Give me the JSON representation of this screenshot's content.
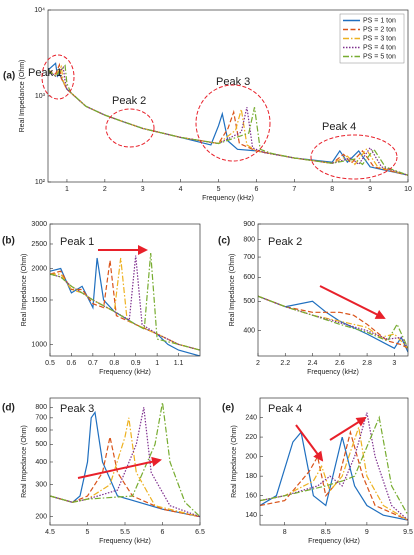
{
  "chart_data": [
    {
      "type": "line",
      "panel": "(a)",
      "xlabel": "Frequency (kHz)",
      "ylabel": "Real Impedance (Ohm)",
      "log_y": true,
      "legend": "upper right",
      "xlim": [
        0.5,
        10
      ],
      "xticks": [
        1,
        2,
        3,
        4,
        5,
        6,
        7,
        8,
        9,
        10
      ],
      "ylim": [
        100,
        10000
      ],
      "yticks": [
        {
          "value": 100,
          "label": "10²"
        },
        {
          "value": 1000,
          "label": "10³"
        },
        {
          "value": 10000,
          "label": "10⁴"
        }
      ],
      "annotations": [
        "Peak 1",
        "Peak 2",
        "Peak 3",
        "Peak 4"
      ],
      "series": [
        {
          "name": "PS = 1 ton",
          "color": "#1f6fbf",
          "style": "solid",
          "x": [
            0.5,
            0.7,
            0.75,
            0.8,
            1,
            1.5,
            2,
            2.5,
            3,
            4,
            4.8,
            5.0,
            5.1,
            5.25,
            5.5,
            6,
            7,
            8,
            8.2,
            8.4,
            8.7,
            9,
            10
          ],
          "values": [
            2000,
            2400,
            1700,
            1800,
            1200,
            760,
            600,
            500,
            420,
            330,
            270,
            450,
            620,
            300,
            240,
            230,
            190,
            170,
            230,
            170,
            230,
            150,
            120
          ]
        },
        {
          "name": "PS = 2 ton",
          "color": "#d95319",
          "style": "dashed",
          "x": [
            0.5,
            0.7,
            0.8,
            0.85,
            1,
            1.5,
            2,
            2.5,
            3,
            4,
            5,
            5.25,
            5.4,
            5.55,
            6,
            7,
            8,
            8.3,
            8.5,
            8.8,
            9.1,
            10
          ],
          "values": [
            2000,
            1800,
            2300,
            1600,
            1200,
            760,
            600,
            500,
            420,
            330,
            280,
            420,
            650,
            280,
            230,
            190,
            165,
            210,
            165,
            230,
            150,
            120
          ]
        },
        {
          "name": "PS = 3 ton",
          "color": "#edb120",
          "style": "dashdot",
          "x": [
            0.5,
            0.7,
            0.85,
            0.9,
            1,
            1.5,
            2,
            2.5,
            3,
            4,
            5,
            5.45,
            5.6,
            5.75,
            6,
            7,
            8,
            8.4,
            8.6,
            8.9,
            9.2,
            10
          ],
          "values": [
            2000,
            1700,
            2200,
            1500,
            1200,
            760,
            600,
            500,
            420,
            330,
            280,
            400,
            700,
            270,
            230,
            190,
            165,
            200,
            160,
            240,
            150,
            120
          ]
        },
        {
          "name": "PS = 4 ton",
          "color": "#7e2f8e",
          "style": "dotted",
          "x": [
            0.5,
            0.7,
            0.9,
            0.95,
            1,
            1.5,
            2,
            2.5,
            3,
            4,
            5,
            5.6,
            5.75,
            5.9,
            6.2,
            7,
            8,
            8.5,
            8.7,
            9.0,
            9.3,
            10
          ],
          "values": [
            2000,
            1700,
            2150,
            1500,
            1200,
            760,
            600,
            500,
            420,
            330,
            280,
            380,
            740,
            250,
            220,
            190,
            165,
            190,
            160,
            250,
            150,
            120
          ]
        },
        {
          "name": "PS = 5 ton",
          "color": "#77ac30",
          "style": "dashdot",
          "x": [
            0.5,
            0.7,
            0.95,
            1.0,
            1.1,
            1.5,
            2,
            2.5,
            3,
            4,
            5,
            5.8,
            5.95,
            6.1,
            6.4,
            7,
            8,
            8.6,
            8.8,
            9.1,
            9.4,
            10
          ],
          "values": [
            2000,
            1700,
            2250,
            1400,
            1100,
            760,
            600,
            500,
            420,
            330,
            280,
            370,
            740,
            240,
            215,
            190,
            165,
            185,
            160,
            240,
            150,
            120
          ]
        }
      ]
    },
    {
      "type": "line",
      "panel": "(b)",
      "xlabel": "Frequency (kHz)",
      "ylabel": "Real Impedance (Ohm)",
      "log_y": true,
      "xlim": [
        0.5,
        1.2
      ],
      "xticks": [
        0.5,
        0.6,
        0.7,
        0.8,
        0.9,
        1,
        1.1
      ],
      "ylim": [
        900,
        3000
      ],
      "yticks": [
        1000,
        1500,
        2000,
        2500,
        3000
      ],
      "annotations": [
        "Peak 1"
      ],
      "series": [
        {
          "color": "#1f6fbf",
          "style": "solid",
          "x": [
            0.5,
            0.55,
            0.6,
            0.65,
            0.7,
            0.72,
            0.75,
            0.8,
            0.9,
            1.0,
            1.05,
            1.1,
            1.2
          ],
          "values": [
            1950,
            2000,
            1600,
            1700,
            1400,
            2200,
            1500,
            1350,
            1200,
            1100,
            1000,
            950,
            900
          ]
        },
        {
          "color": "#d95319",
          "style": "dashed",
          "x": [
            0.5,
            0.55,
            0.6,
            0.65,
            0.7,
            0.75,
            0.78,
            0.81,
            0.9,
            1.0,
            1.1,
            1.2
          ],
          "values": [
            1900,
            1950,
            1650,
            1650,
            1450,
            1400,
            2150,
            1300,
            1200,
            1100,
            1000,
            950
          ]
        },
        {
          "color": "#edb120",
          "style": "dashdot",
          "x": [
            0.5,
            0.55,
            0.6,
            0.65,
            0.7,
            0.8,
            0.83,
            0.86,
            0.9,
            1.0,
            1.1,
            1.2
          ],
          "values": [
            1900,
            1900,
            1650,
            1600,
            1500,
            1350,
            2200,
            1250,
            1200,
            1100,
            1000,
            950
          ]
        },
        {
          "color": "#7e2f8e",
          "style": "dotted",
          "x": [
            0.5,
            0.55,
            0.6,
            0.65,
            0.7,
            0.8,
            0.87,
            0.9,
            0.93,
            1.0,
            1.1,
            1.2
          ],
          "values": [
            1900,
            1850,
            1700,
            1600,
            1500,
            1350,
            1250,
            2250,
            1200,
            1100,
            1000,
            950
          ]
        },
        {
          "color": "#77ac30",
          "style": "dashdot",
          "x": [
            0.5,
            0.55,
            0.6,
            0.65,
            0.7,
            0.8,
            0.9,
            0.94,
            0.97,
            1.0,
            1.1,
            1.2
          ],
          "values": [
            1900,
            1850,
            1700,
            1600,
            1500,
            1350,
            1200,
            1150,
            2300,
            1050,
            1000,
            950
          ]
        }
      ]
    },
    {
      "type": "line",
      "panel": "(c)",
      "xlabel": "Frequency (kHz)",
      "ylabel": "Real Impedance (Ohm)",
      "log_y": true,
      "xlim": [
        2,
        3.1
      ],
      "xticks": [
        2,
        2.2,
        2.4,
        2.6,
        2.8,
        3
      ],
      "ylim": [
        330,
        900
      ],
      "yticks": [
        400,
        500,
        600,
        700,
        800,
        900
      ],
      "annotations": [
        "Peak 2"
      ],
      "series": [
        {
          "color": "#1f6fbf",
          "style": "solid",
          "x": [
            2,
            2.2,
            2.4,
            2.5,
            2.6,
            2.8,
            3,
            3.05,
            3.1
          ],
          "values": [
            520,
            480,
            500,
            460,
            430,
            390,
            350,
            380,
            340
          ]
        },
        {
          "color": "#d95319",
          "style": "dashed",
          "x": [
            2,
            2.2,
            2.4,
            2.6,
            2.7,
            2.8,
            2.95,
            3.05,
            3.1
          ],
          "values": [
            520,
            480,
            460,
            460,
            450,
            420,
            370,
            360,
            350
          ]
        },
        {
          "color": "#edb120",
          "style": "dashdot",
          "x": [
            2,
            2.2,
            2.4,
            2.6,
            2.8,
            2.9,
            3.0,
            3.1
          ],
          "values": [
            520,
            480,
            450,
            430,
            410,
            380,
            390,
            350
          ]
        },
        {
          "color": "#7e2f8e",
          "style": "dotted",
          "x": [
            2,
            2.2,
            2.4,
            2.6,
            2.8,
            2.95,
            3.05,
            3.1
          ],
          "values": [
            520,
            480,
            450,
            425,
            400,
            375,
            380,
            350
          ]
        },
        {
          "color": "#77ac30",
          "style": "dashdot",
          "x": [
            2,
            2.2,
            2.4,
            2.6,
            2.8,
            2.95,
            3.02,
            3.1
          ],
          "values": [
            520,
            480,
            450,
            420,
            395,
            370,
            420,
            350
          ]
        }
      ]
    },
    {
      "type": "line",
      "panel": "(d)",
      "xlabel": "Frequency (kHz)",
      "ylabel": "Real Impedance (Ohm)",
      "log_y": true,
      "xlim": [
        4.5,
        6.5
      ],
      "xticks": [
        4.5,
        5,
        5.5,
        6,
        6.5
      ],
      "ylim": [
        180,
        900
      ],
      "yticks": [
        200,
        300,
        400,
        500,
        600,
        700,
        800
      ],
      "annotations": [
        "Peak 3"
      ],
      "series": [
        {
          "color": "#1f6fbf",
          "style": "solid",
          "x": [
            4.5,
            4.8,
            4.9,
            5,
            5.05,
            5.1,
            5.2,
            5.4,
            6,
            6.5
          ],
          "values": [
            260,
            240,
            260,
            400,
            700,
            750,
            400,
            260,
            220,
            200
          ]
        },
        {
          "color": "#d95319",
          "style": "dashed",
          "x": [
            4.5,
            4.8,
            5,
            5.2,
            5.3,
            5.4,
            5.6,
            6,
            6.5
          ],
          "values": [
            260,
            240,
            260,
            350,
            550,
            350,
            260,
            220,
            200
          ]
        },
        {
          "color": "#edb120",
          "style": "dashdot",
          "x": [
            4.5,
            4.8,
            5,
            5.3,
            5.5,
            5.55,
            5.65,
            5.9,
            6.5
          ],
          "values": [
            260,
            240,
            250,
            300,
            550,
            700,
            350,
            230,
            200
          ]
        },
        {
          "color": "#7e2f8e",
          "style": "dotted",
          "x": [
            4.5,
            4.8,
            5,
            5.4,
            5.65,
            5.75,
            5.85,
            6.1,
            6.5
          ],
          "values": [
            260,
            240,
            250,
            280,
            500,
            800,
            350,
            230,
            200
          ]
        },
        {
          "color": "#77ac30",
          "style": "dashdot",
          "x": [
            4.5,
            4.8,
            5,
            5.6,
            5.9,
            6.0,
            6.1,
            6.3,
            6.5
          ],
          "values": [
            260,
            240,
            250,
            260,
            500,
            850,
            400,
            240,
            200
          ]
        }
      ]
    },
    {
      "type": "line",
      "panel": "(e)",
      "xlabel": "Frequency (kHz)",
      "ylabel": "Real Impedance (Ohm)",
      "log_y": false,
      "xlim": [
        7.7,
        9.5
      ],
      "xticks": [
        8,
        8.5,
        9,
        9.5
      ],
      "ylim": [
        130,
        260
      ],
      "yticks": [
        140,
        160,
        180,
        200,
        220,
        240
      ],
      "annotations": [
        "Peak 4"
      ],
      "series": [
        {
          "color": "#1f6fbf",
          "style": "solid",
          "x": [
            7.7,
            7.9,
            8.1,
            8.2,
            8.35,
            8.5,
            8.7,
            8.85,
            9,
            9.2,
            9.5
          ],
          "values": [
            150,
            160,
            215,
            225,
            160,
            150,
            220,
            170,
            150,
            140,
            135
          ]
        },
        {
          "color": "#d95319",
          "style": "dashed",
          "x": [
            7.7,
            8.0,
            8.3,
            8.4,
            8.5,
            8.65,
            8.8,
            8.95,
            9.1,
            9.5
          ],
          "values": [
            150,
            155,
            185,
            200,
            160,
            175,
            225,
            180,
            150,
            135
          ]
        },
        {
          "color": "#edb120",
          "style": "dashdot",
          "x": [
            7.7,
            8.0,
            8.35,
            8.45,
            8.55,
            8.7,
            8.9,
            9.0,
            9.2,
            9.5
          ],
          "values": [
            155,
            160,
            175,
            190,
            165,
            180,
            230,
            180,
            150,
            135
          ]
        },
        {
          "color": "#7e2f8e",
          "style": "dotted",
          "x": [
            7.7,
            8.0,
            8.4,
            8.55,
            8.7,
            8.85,
            9.0,
            9.1,
            9.3,
            9.5
          ],
          "values": [
            155,
            160,
            170,
            180,
            170,
            200,
            245,
            200,
            150,
            135
          ]
        },
        {
          "color": "#77ac30",
          "style": "dashdot",
          "x": [
            7.7,
            8.0,
            8.5,
            8.7,
            8.85,
            9.0,
            9.15,
            9.3,
            9.5
          ],
          "values": [
            155,
            160,
            170,
            175,
            180,
            210,
            240,
            170,
            140
          ]
        }
      ]
    }
  ]
}
